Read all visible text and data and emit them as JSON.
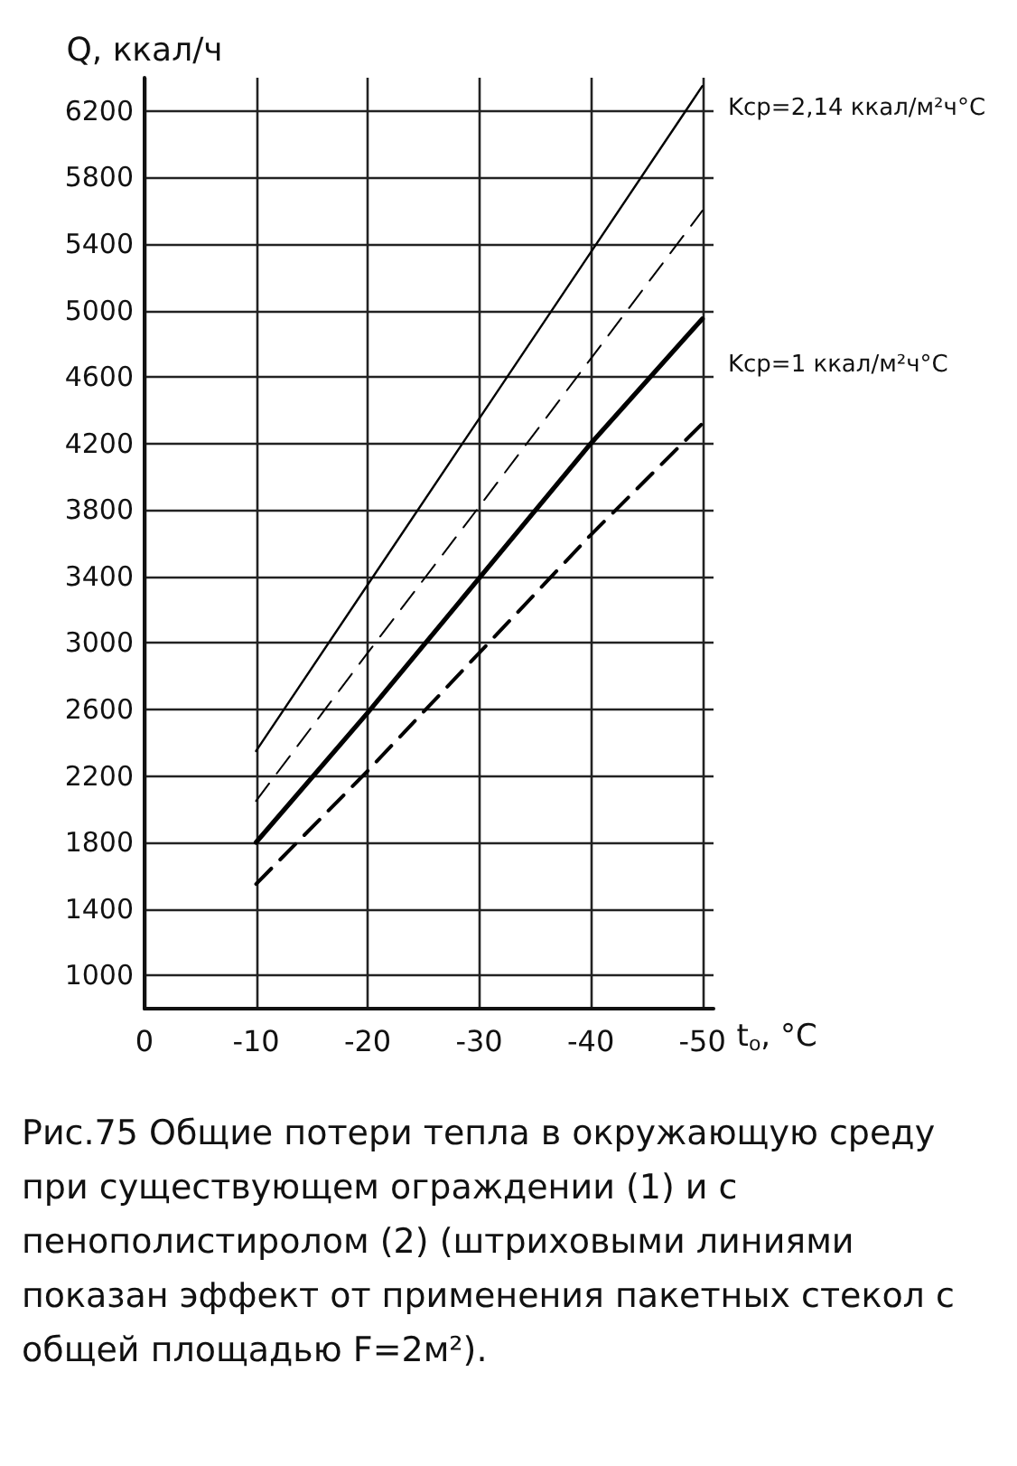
{
  "chart_data": {
    "type": "line",
    "ylabel": "Q, ккал/ч",
    "xlabel": "t$_{о}$, °C",
    "x": [
      -10,
      -20,
      -30,
      -40,
      -50
    ],
    "series": [
      {
        "color": "#000000",
        "values": [
          2350,
          3350,
          4350,
          5350,
          6350
        ],
        "line_style": "solid"
      },
      {
        "color": "#000000",
        "values": [
          2050,
          2940,
          3820,
          4710,
          5600
        ],
        "line_style": "dashed"
      },
      {
        "color": "#000000",
        "values": [
          1800,
          2580,
          3390,
          4200,
          4950
        ],
        "line_style": "solid"
      },
      {
        "color": "#000000",
        "values": [
          1550,
          2230,
          2940,
          3650,
          4320
        ],
        "line_style": "dashed"
      }
    ],
    "xlim": [
      0,
      -51
    ],
    "xticks": [
      0,
      -10,
      -20,
      -30,
      -40,
      -50
    ],
    "ylim": [
      800,
      6400
    ],
    "yticks": [
      1000,
      1400,
      1800,
      2200,
      2600,
      3000,
      3400,
      3800,
      4200,
      4600,
      5000,
      5400,
      5800,
      6200
    ],
    "grid": true,
    "marker": "none",
    "annotations": [
      "Kср=2,14 ккал/м²ч°С",
      "Kср=1 ккал/м²ч°С",
      "Рис.75 Общие потери тепла в окружающую среду при существующем ограждении (1) и с пенополистиролом (2) (штриховыми линиями показан эффект от применения пакетных стекол с общей площадью F=2м²)."
    ]
  }
}
